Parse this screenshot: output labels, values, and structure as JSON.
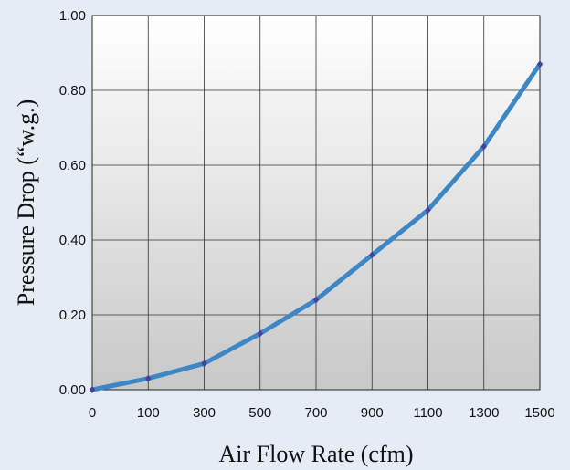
{
  "chart_data": {
    "type": "line",
    "title": "",
    "xlabel": "Air Flow Rate (cfm)",
    "ylabel": "Pressure Drop (“w.g.)",
    "categories": [
      "0",
      "100",
      "300",
      "500",
      "700",
      "900",
      "1100",
      "1300",
      "1500"
    ],
    "y_ticks": [
      "0.00",
      "0.20",
      "0.40",
      "0.60",
      "0.80",
      "1.00"
    ],
    "ylim": [
      0,
      1.0
    ],
    "grid": true,
    "series": [
      {
        "values": [
          0.0,
          0.03,
          0.07,
          0.15,
          0.24,
          0.36,
          0.48,
          0.65,
          0.87
        ],
        "color": "#3d87c6",
        "marker_color": "#4a3f9a"
      }
    ]
  }
}
